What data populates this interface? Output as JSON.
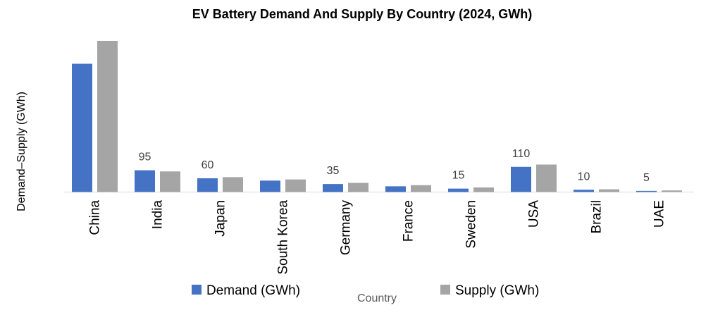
{
  "chart_data": {
    "type": "bar",
    "title": "EV Battery Demand And Supply By Country (2024, GWh)",
    "xlabel": "Country",
    "ylabel": "Demand–Supply (GWh)",
    "categories": [
      "China",
      "India",
      "Japan",
      "South Korea",
      "Germany",
      "France",
      "Sweden",
      "USA",
      "Brazil",
      "UAE"
    ],
    "series": [
      {
        "name": "Demand (GWh)",
        "color": "#4472C4",
        "values": [
          560,
          95,
          60,
          50,
          35,
          25,
          15,
          110,
          10,
          5
        ]
      },
      {
        "name": "Supply (GWh)",
        "color": "#A5A5A5",
        "values": [
          660,
          90,
          65,
          55,
          40,
          30,
          20,
          120,
          12,
          7
        ]
      }
    ],
    "data_labels": [
      "",
      "95",
      "60",
      "",
      "35",
      "",
      "15",
      "110",
      "10",
      "5"
    ],
    "ylim": [
      0,
      660
    ],
    "grid": false,
    "legend_position": "bottom"
  }
}
